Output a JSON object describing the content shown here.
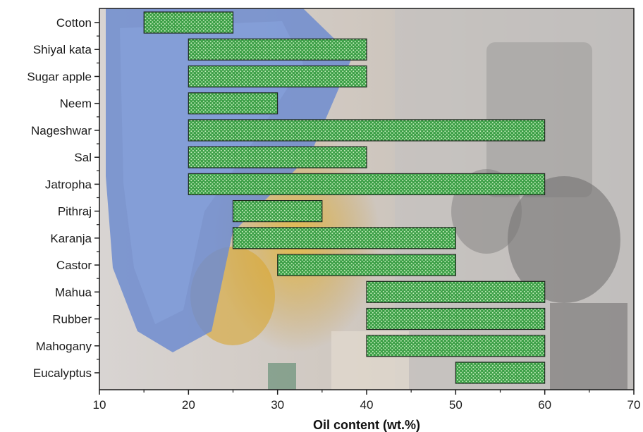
{
  "chart_data": {
    "type": "bar",
    "orientation": "horizontal",
    "style": "floating range bars",
    "xlabel": "Oil content (wt.%)",
    "ylabel": "",
    "xlim": [
      10,
      70
    ],
    "xticks": [
      "10",
      "20",
      "30",
      "40",
      "50",
      "60",
      "70"
    ],
    "grid": false,
    "bar_color": "#3fa548",
    "bar_pattern_color": "#b9e6b0",
    "bar_border_color": "#1e2a1e",
    "background": "photo of a gloved hand pouring yellow oil from a beaker in a laboratory",
    "categories": [
      "Cotton",
      "Shiyal kata",
      "Sugar apple",
      "Neem",
      "Nageshwar",
      "Sal",
      "Jatropha",
      "Pithraj",
      "Karanja",
      "Castor",
      "Mahua",
      "Rubber",
      "Mahogany",
      "Eucalyptus"
    ],
    "ranges": [
      [
        15,
        25
      ],
      [
        20,
        40
      ],
      [
        20,
        40
      ],
      [
        20,
        30
      ],
      [
        20,
        60
      ],
      [
        20,
        40
      ],
      [
        20,
        60
      ],
      [
        25,
        35
      ],
      [
        25,
        50
      ],
      [
        30,
        50
      ],
      [
        40,
        60
      ],
      [
        40,
        60
      ],
      [
        40,
        60
      ],
      [
        50,
        60
      ]
    ]
  }
}
